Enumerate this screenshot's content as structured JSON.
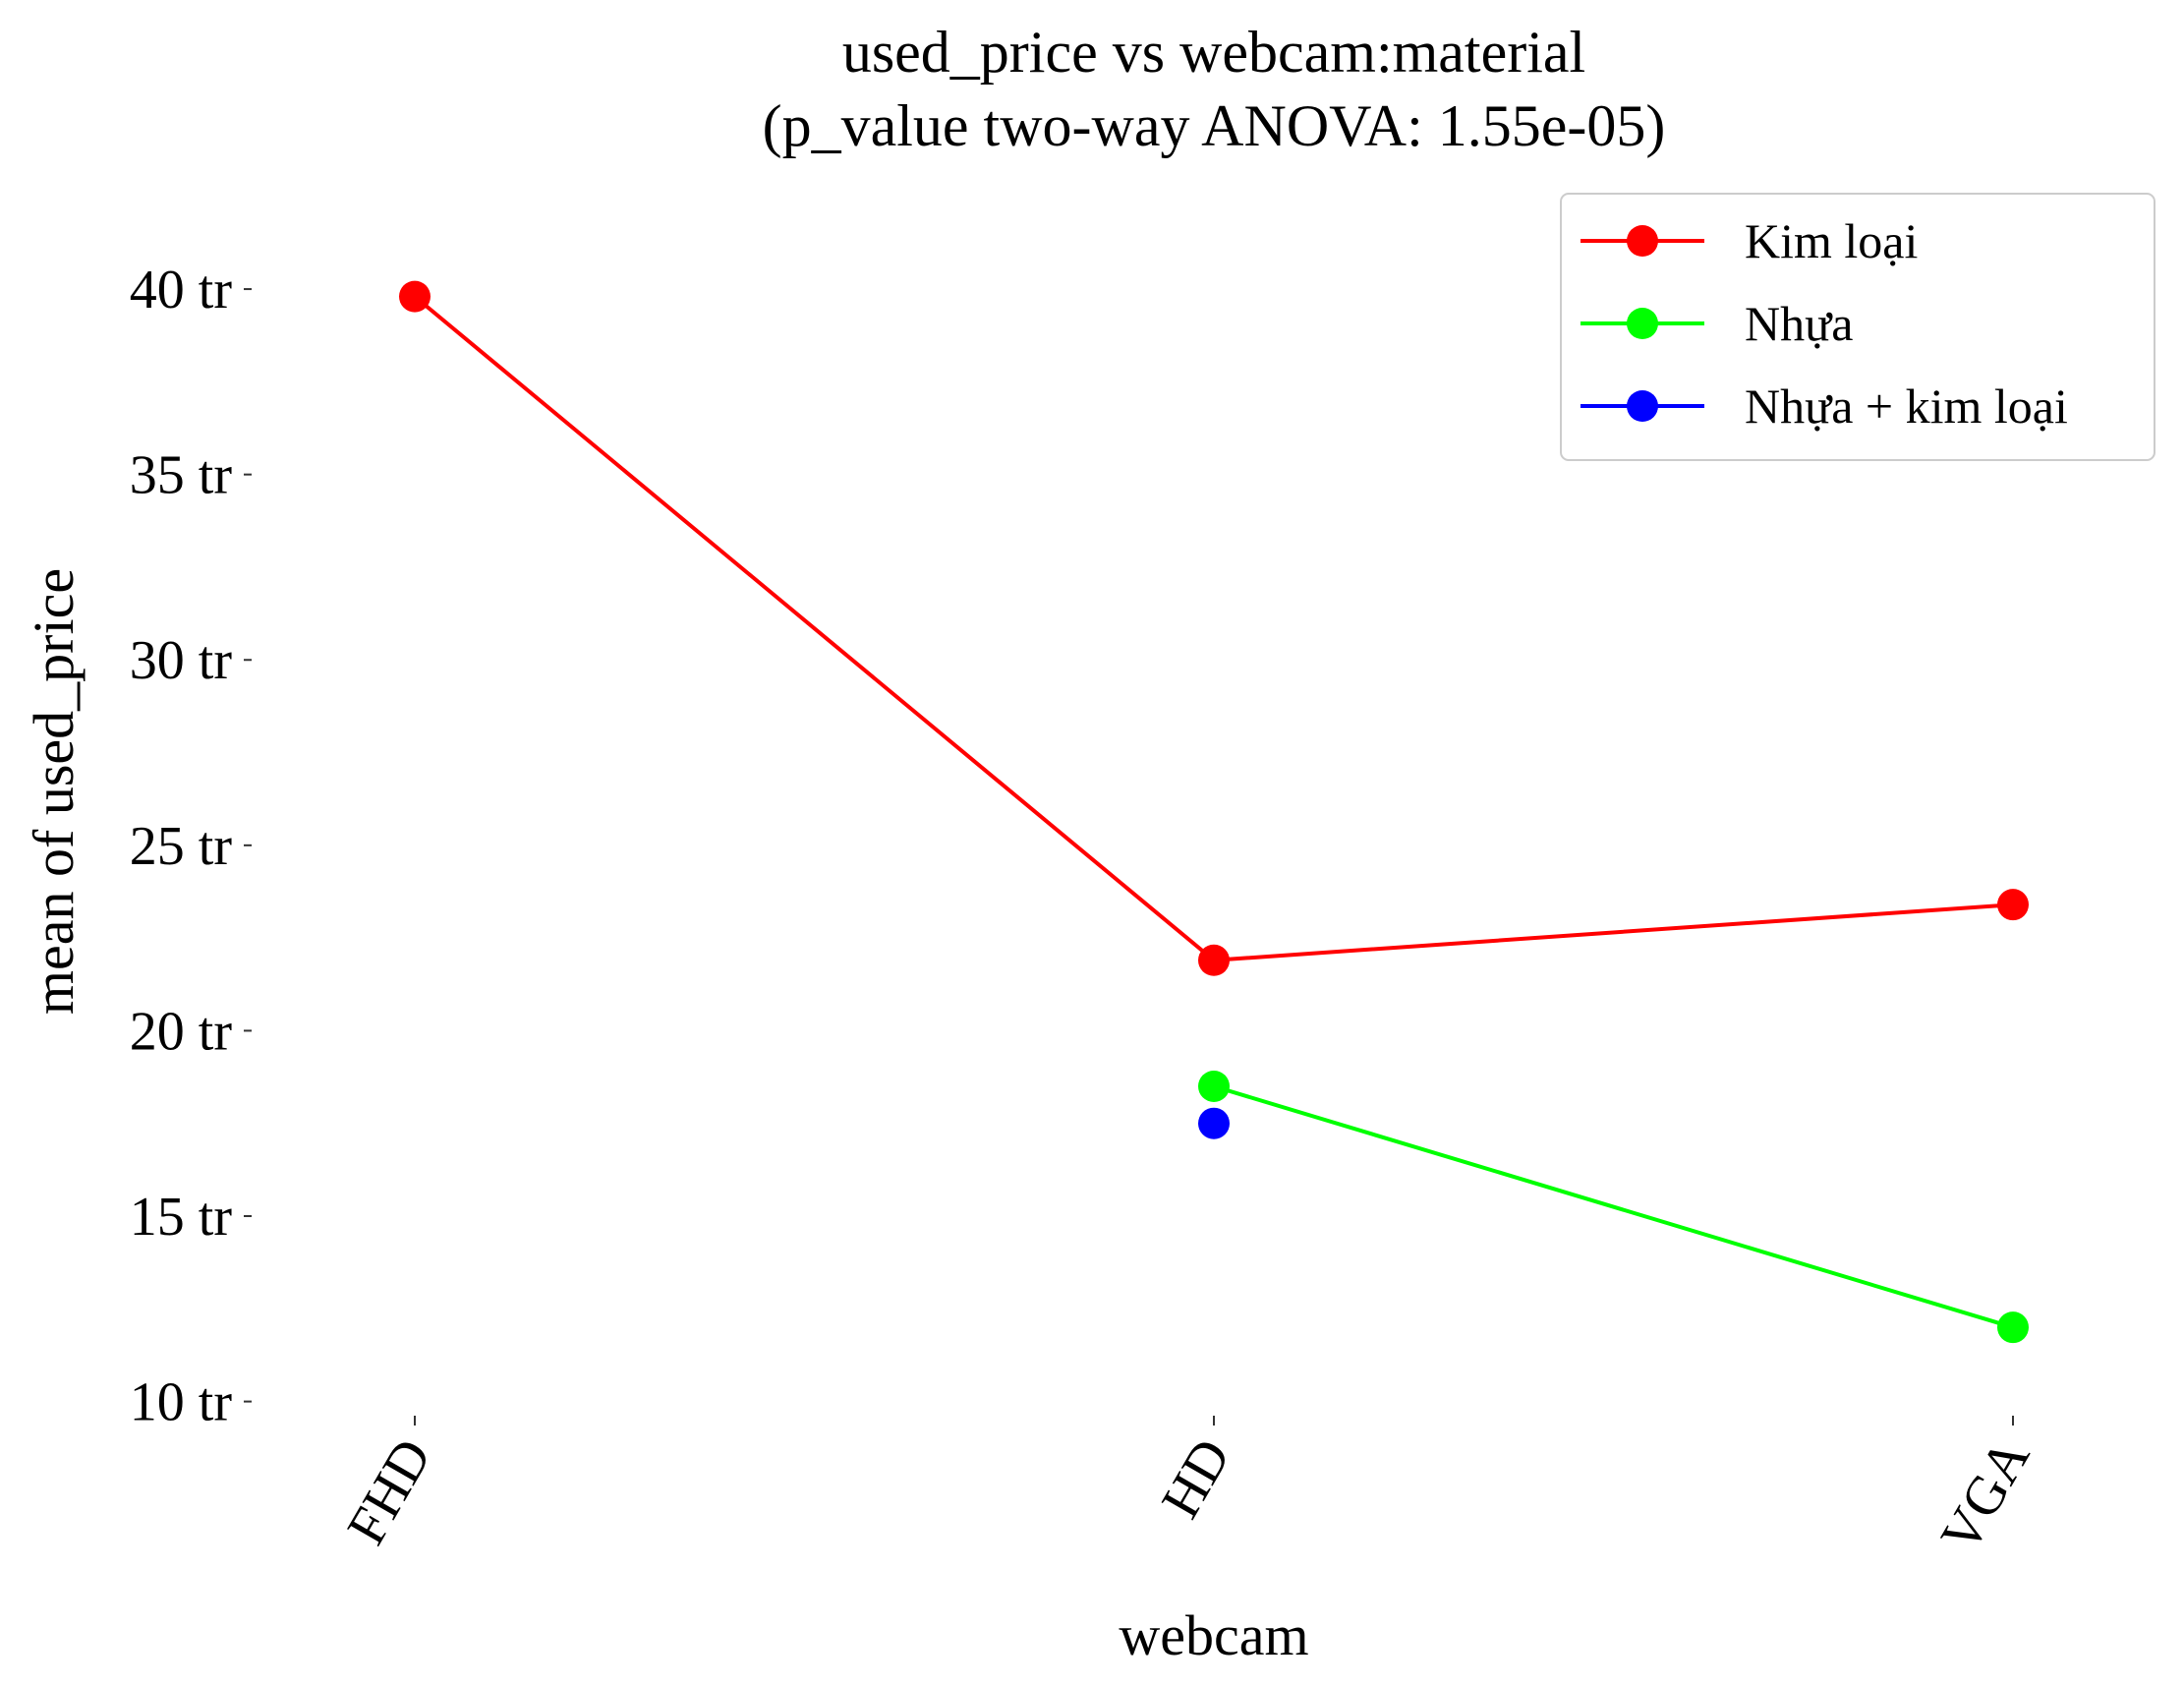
{
  "chart_data": {
    "type": "line",
    "title": "used_price vs webcam:material",
    "subtitle": "(p_value two-way ANOVA: 1.55e-05)",
    "xlabel": "webcam",
    "ylabel": "mean of used_price",
    "categories": [
      "FHD",
      "HD",
      "VGA"
    ],
    "y_unit_suffix": " tr",
    "yticks": [
      10,
      15,
      20,
      25,
      30,
      35,
      40
    ],
    "ylim": [
      9.3,
      42.6
    ],
    "grid": false,
    "legend_position": "top-right",
    "series": [
      {
        "name": "Kim loại",
        "color": "#ff0000",
        "values": [
          39.8,
          21.9,
          23.4
        ]
      },
      {
        "name": "Nhựa",
        "color": "#00ff00",
        "values": [
          null,
          18.5,
          12.0
        ]
      },
      {
        "name": "Nhựa + kim loại",
        "color": "#0000ff",
        "values": [
          null,
          17.5,
          null
        ]
      }
    ]
  }
}
